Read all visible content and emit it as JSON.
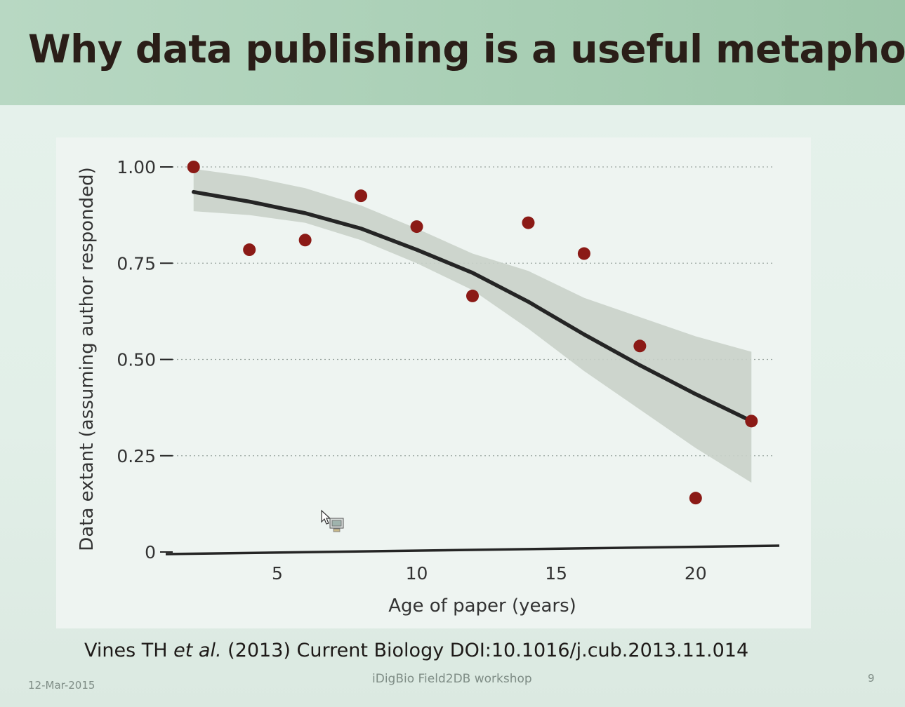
{
  "slide": {
    "title": "Why data publishing is a useful metaphor",
    "citation": {
      "authors": "Vines TH",
      "etal": "et al.",
      "rest": "(2013) Current Biology DOI:10.1016/j.cub.2013.11.014"
    },
    "footer": {
      "date": "12-Mar-2015",
      "center": "iDigBio Field2DB workshop",
      "page": "9"
    }
  },
  "colors": {
    "point": "#8b1a16",
    "fit_line": "#252525",
    "confidence_band": "#c9d1c9",
    "gridline": "#9aa5a0",
    "axis": "#252525"
  },
  "icons": {
    "cursor": "mouse-pointer-icon"
  },
  "chart_data": {
    "type": "scatter",
    "xlabel": "Age of paper (years)",
    "ylabel": "Data extant (assuming author responded)",
    "xlim": [
      1,
      23
    ],
    "ylim": [
      0,
      1.0
    ],
    "xticks": [
      5,
      10,
      15,
      20
    ],
    "xtick_labels": [
      "5",
      "10",
      "15",
      "20"
    ],
    "yticks": [
      0,
      0.25,
      0.5,
      0.75,
      1.0
    ],
    "ytick_labels": [
      "0",
      "0.25",
      "0.50",
      "0.75",
      "1.00"
    ],
    "grid": "horizontal dotted",
    "points": {
      "x": [
        2,
        4,
        6,
        8,
        10,
        12,
        14,
        16,
        18,
        20,
        22
      ],
      "y": [
        1.0,
        0.785,
        0.81,
        0.925,
        0.845,
        0.665,
        0.855,
        0.775,
        0.535,
        0.14,
        0.34
      ]
    },
    "fit": {
      "x": [
        2,
        4,
        6,
        8,
        10,
        12,
        14,
        16,
        18,
        20,
        22
      ],
      "y": [
        0.935,
        0.91,
        0.88,
        0.84,
        0.785,
        0.725,
        0.65,
        0.565,
        0.485,
        0.41,
        0.34
      ]
    },
    "band": {
      "x": [
        2,
        4,
        6,
        8,
        10,
        12,
        14,
        16,
        18,
        20,
        22
      ],
      "lower": [
        0.885,
        0.875,
        0.855,
        0.81,
        0.75,
        0.68,
        0.58,
        0.47,
        0.37,
        0.27,
        0.18
      ],
      "upper": [
        0.995,
        0.975,
        0.945,
        0.9,
        0.84,
        0.775,
        0.73,
        0.66,
        0.61,
        0.56,
        0.52
      ]
    }
  }
}
